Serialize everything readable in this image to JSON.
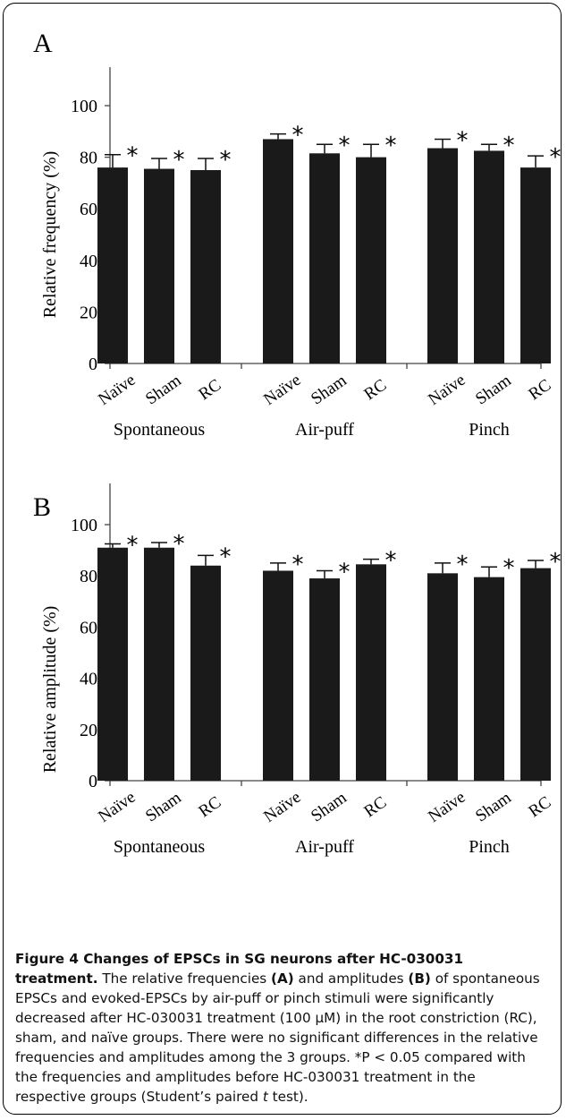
{
  "panels": [
    {
      "label": "A",
      "ylabel": "Relative frequency (%)",
      "yticks": [
        "0",
        "20",
        "40",
        "60",
        "80",
        "100"
      ]
    },
    {
      "label": "B",
      "ylabel": "Relative amplitude (%)",
      "yticks": [
        "0",
        "20",
        "40",
        "60",
        "80",
        "100"
      ]
    }
  ],
  "chart_data": [
    {
      "type": "bar",
      "title": "",
      "xlabel": "",
      "ylabel": "Relative frequency (%)",
      "ylim": [
        0,
        110
      ],
      "groups": [
        "Spontaneous",
        "Air-puff",
        "Pinch"
      ],
      "categories": [
        "Naïve",
        "Sham",
        "RC"
      ],
      "series": [
        {
          "group": "Spontaneous",
          "values": [
            76,
            75.5,
            75
          ],
          "errors": [
            5,
            4,
            4.5
          ],
          "significant": [
            "*",
            "*",
            "*"
          ]
        },
        {
          "group": "Air-puff",
          "values": [
            87,
            81.5,
            80
          ],
          "errors": [
            2,
            3.5,
            5
          ],
          "significant": [
            "*",
            "*",
            "*"
          ]
        },
        {
          "group": "Pinch",
          "values": [
            83.5,
            82.5,
            76
          ],
          "errors": [
            3.5,
            2.5,
            4.5
          ],
          "significant": [
            "*",
            "*",
            "*"
          ]
        }
      ],
      "bar_color": "#1a1a1a",
      "grid": false
    },
    {
      "type": "bar",
      "title": "",
      "xlabel": "",
      "ylabel": "Relative amplitude (%)",
      "ylim": [
        0,
        110
      ],
      "groups": [
        "Spontaneous",
        "Air-puff",
        "Pinch"
      ],
      "categories": [
        "Naïve",
        "Sham",
        "RC"
      ],
      "series": [
        {
          "group": "Spontaneous",
          "values": [
            91,
            91,
            84
          ],
          "errors": [
            1.5,
            2,
            4
          ],
          "significant": [
            "*",
            "*",
            "*"
          ]
        },
        {
          "group": "Air-puff",
          "values": [
            82,
            79,
            84.5
          ],
          "errors": [
            3,
            3,
            2
          ],
          "significant": [
            "*",
            "*",
            "*"
          ]
        },
        {
          "group": "Pinch",
          "values": [
            81,
            79.5,
            83
          ],
          "errors": [
            4,
            4,
            3
          ],
          "significant": [
            "*",
            "*",
            "*"
          ]
        }
      ],
      "bar_color": "#1a1a1a",
      "grid": false
    }
  ],
  "caption": {
    "title": "Figure 4 Changes of EPSCs in SG neurons after HC-030031 treatment.",
    "text_1": " The relative frequencies ",
    "ref_a": "(A)",
    "text_2": " and amplitudes ",
    "ref_b": "(B)",
    "text_3": " of spontaneous EPSCs and evoked-EPSCs by air-puff or pinch stimuli were significantly decreased after HC-030031 treatment (100 µM) in the root constriction (RC), sham, and naïve groups. There were no significant differences in the relative frequencies and amplitudes among the 3 groups. *P < 0.05 compared with the frequencies and amplitudes before HC-030031 treatment in the respective groups (Student’s paired ",
    "t_italic": "t",
    "text_4": " test)."
  }
}
